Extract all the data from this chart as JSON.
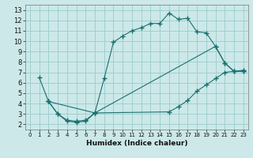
{
  "xlabel": "Humidex (Indice chaleur)",
  "bg_color": "#cce8e8",
  "grid_color": "#99cccc",
  "line_color": "#1a7070",
  "xlim": [
    -0.5,
    23.5
  ],
  "ylim": [
    1.5,
    13.5
  ],
  "xticks": [
    0,
    1,
    2,
    3,
    4,
    5,
    6,
    7,
    8,
    9,
    10,
    11,
    12,
    13,
    14,
    15,
    16,
    17,
    18,
    19,
    20,
    21,
    22,
    23
  ],
  "yticks": [
    2,
    3,
    4,
    5,
    6,
    7,
    8,
    9,
    10,
    11,
    12,
    13
  ],
  "line1_x": [
    1,
    2,
    3,
    4,
    5,
    6,
    7,
    8,
    9,
    10,
    11,
    12,
    13,
    14,
    15,
    16,
    17,
    18,
    19,
    20,
    21,
    22,
    23
  ],
  "line1_y": [
    6.5,
    4.2,
    3.0,
    2.3,
    2.2,
    2.3,
    3.1,
    6.4,
    9.9,
    10.5,
    11.0,
    11.3,
    11.7,
    11.7,
    12.7,
    12.1,
    12.2,
    10.9,
    10.8,
    9.5,
    7.9,
    7.1,
    7.1
  ],
  "line2_x": [
    2,
    7,
    20,
    21,
    22,
    23
  ],
  "line2_y": [
    4.2,
    3.1,
    9.5,
    7.9,
    7.1,
    7.2
  ],
  "line3_x": [
    2,
    3,
    4,
    5,
    6,
    7,
    15,
    16,
    17,
    18,
    19,
    20,
    21,
    22,
    23
  ],
  "line3_y": [
    4.2,
    3.0,
    2.4,
    2.3,
    2.4,
    3.1,
    3.2,
    3.7,
    4.3,
    5.2,
    5.8,
    6.4,
    7.0,
    7.1,
    7.1
  ]
}
